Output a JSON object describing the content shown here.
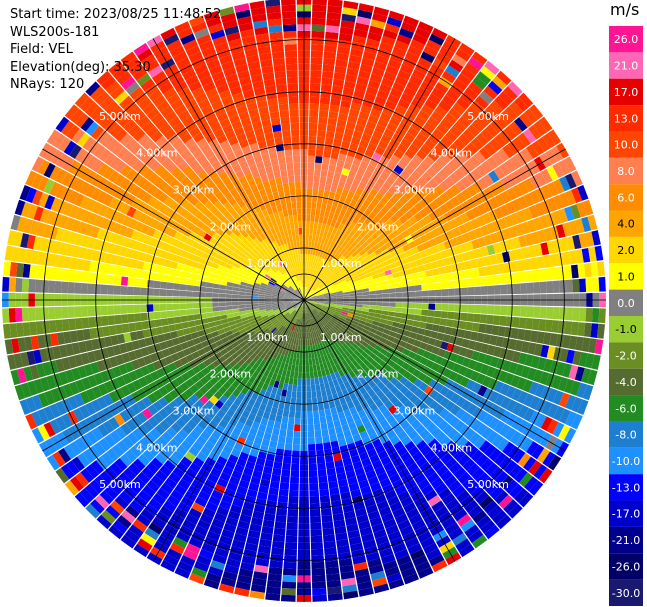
{
  "info": {
    "start_time": "Start time: 2023/08/25 11:48:52",
    "site": "WLS200s-181",
    "field": "Field: VEL",
    "elevation": "Elevation(deg): 35.30",
    "nrays": "NRays: 120"
  },
  "colorbar": {
    "unit": "m/s",
    "labels": [
      "26.0",
      "21.0",
      "17.0",
      "13.0",
      "10.0",
      "8.0",
      "6.0",
      "4.0",
      "2.0",
      "1.0",
      "0.0",
      "-1.0",
      "-2.0",
      "-4.0",
      "-6.0",
      "-8.0",
      "-10.0",
      "-13.0",
      "-17.0",
      "-21.0",
      "-26.0",
      "-30.0"
    ],
    "colors": [
      "#ff1493",
      "#ff66b3",
      "#e60000",
      "#ff2a00",
      "#ff4500",
      "#ff7f50",
      "#ff8c00",
      "#ffa500",
      "#ffd700",
      "#ffff00",
      "#808080",
      "#9acd32",
      "#6b8e23",
      "#556b2f",
      "#228b22",
      "#1e7fd0",
      "#1e90ff",
      "#0000ff",
      "#0000cd",
      "#00008b",
      "#000066",
      "#191970"
    ]
  },
  "chart_data": {
    "type": "heatmap",
    "projection": "polar (PPI scan)",
    "field": "VEL",
    "unit": "m/s",
    "n_rays": 120,
    "range_ring_labels": [
      "1.00km",
      "2.00km",
      "3.00km",
      "4.00km",
      "5.00km"
    ],
    "range_rings_km": [
      0.5,
      1.0,
      2.0,
      3.0,
      4.0,
      5.0
    ],
    "max_range_km": 5.8,
    "grid_spoke_azimuths_deg": [
      0,
      30,
      60,
      90,
      120,
      150,
      180,
      210,
      240,
      270,
      300,
      330
    ],
    "pattern": "positive (toward red/orange) velocities to the north, negative (blue) velocities to the south; zero line runs east-west near the center",
    "velocity_bins": [
      -30,
      -26,
      -21,
      -17,
      -13,
      -10,
      -8,
      -6,
      -4,
      -2,
      -1,
      0,
      1,
      2,
      4,
      6,
      8,
      10,
      13,
      17,
      21,
      26
    ]
  }
}
